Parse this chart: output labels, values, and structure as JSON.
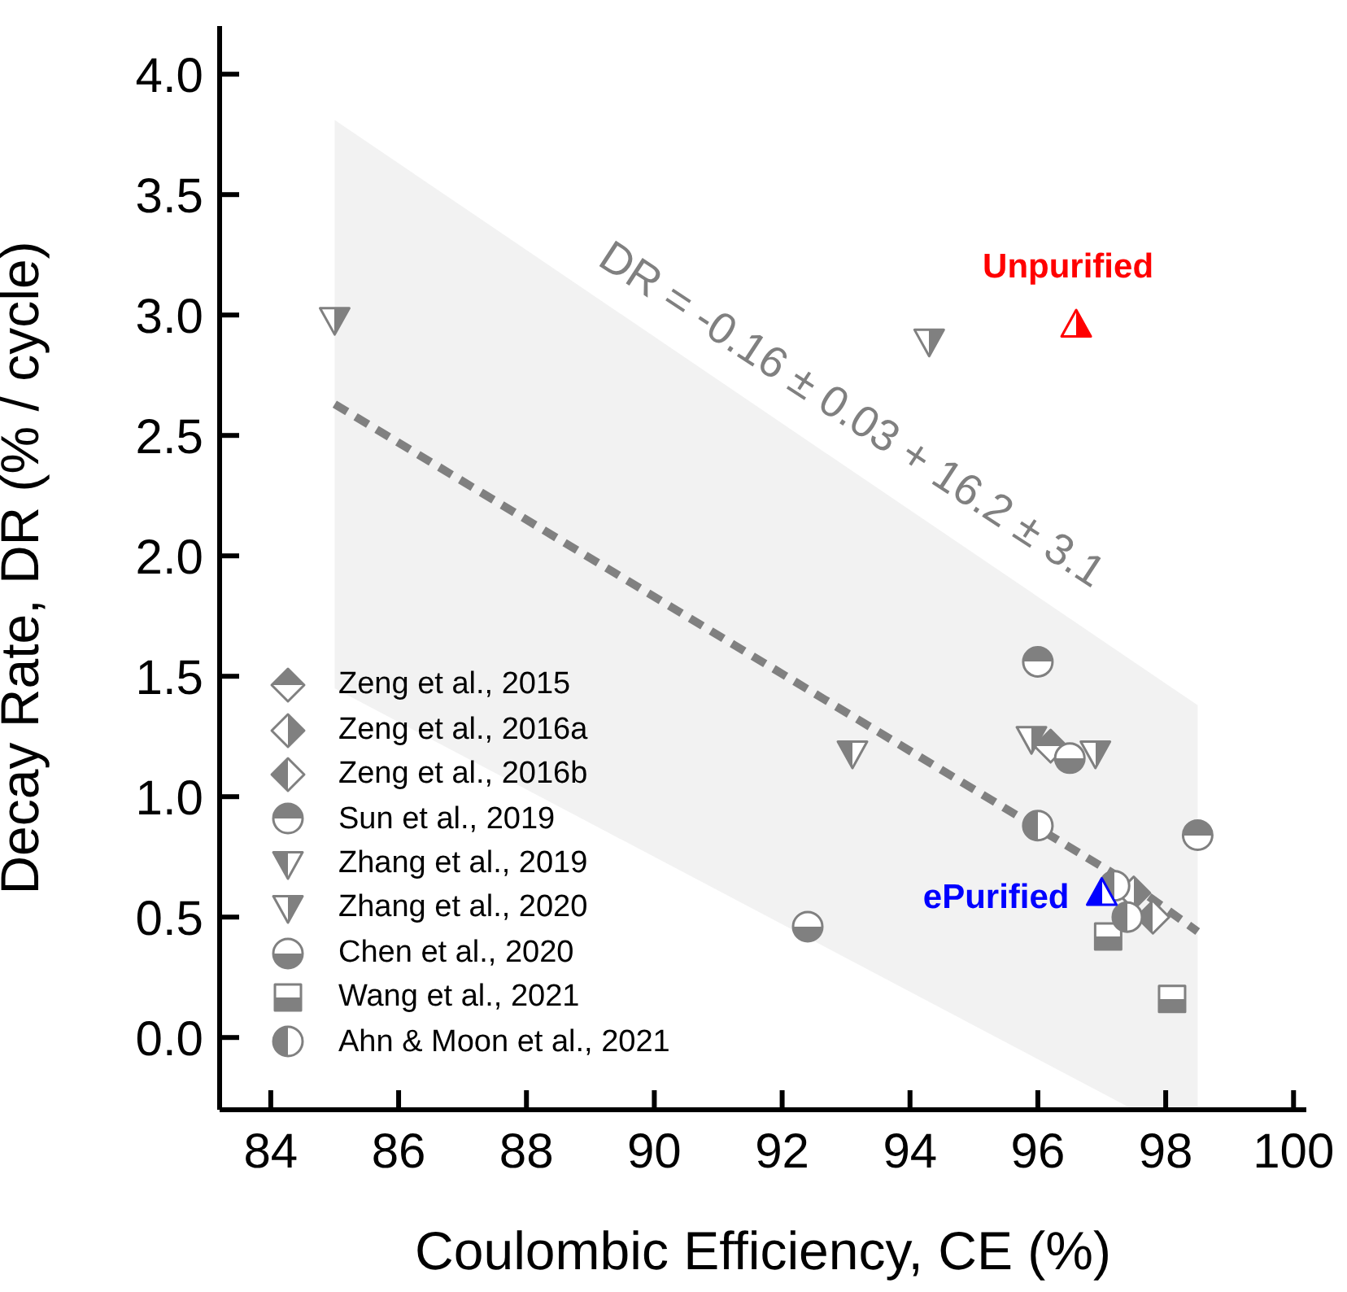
{
  "chart_data": {
    "type": "scatter",
    "xlabel": "Coulombic Efficiency, CE (%)",
    "ylabel": "Decay Rate, DR (% / cycle)",
    "xlim": [
      83.2,
      100.2
    ],
    "xticks": [
      84,
      86,
      88,
      90,
      92,
      94,
      96,
      98,
      100
    ],
    "ylim": [
      -0.3,
      4.2
    ],
    "yticks": [
      {
        "value": 0,
        "label": "0.0"
      },
      {
        "value": 0.5,
        "label": "0.5"
      },
      {
        "value": 1,
        "label": "1.0"
      },
      {
        "value": 1.5,
        "label": "1.5"
      },
      {
        "value": 2,
        "label": "2.0"
      },
      {
        "value": 2.5,
        "label": "2.5"
      },
      {
        "value": 3,
        "label": "3.0"
      },
      {
        "value": 3.5,
        "label": "3.5"
      },
      {
        "value": 4,
        "label": "4.0"
      }
    ],
    "legend": "bottom left",
    "grid": false,
    "annotations": [
      "DR = -0.16 ± 0.03 + 16.2 ± 3.1",
      {
        "text": "Unpurified",
        "x": 96.6,
        "y": 2.96
      },
      {
        "text": "ePurified",
        "x": 97.0,
        "y": 0.6
      }
    ],
    "series": [
      {
        "type": "line",
        "color": "#808080",
        "line_style": "dashed",
        "x": [
          85,
          97.5,
          98.5
        ],
        "values": [
          2.63,
          0.63,
          0.44
        ],
        "lower": [
          1.45,
          -0.3,
          -0.3
        ],
        "upper": [
          3.81,
          1.56,
          1.38
        ]
      },
      {
        "name": "Zeng et al., 2015",
        "color": "#808080",
        "marker": "diamond",
        "x": [
          96.2
        ],
        "values": [
          1.21
        ]
      },
      {
        "name": "Zeng et al., 2016a",
        "color": "#808080",
        "marker": "diamond",
        "x": [
          97.5
        ],
        "values": [
          0.6
        ]
      },
      {
        "name": "Zeng et al., 2016b",
        "color": "#808080",
        "marker": "diamond",
        "x": [
          97.8
        ],
        "values": [
          0.5
        ]
      },
      {
        "name": "Sun et al., 2019",
        "color": "#808080",
        "marker": "circle",
        "x": [
          96.0,
          98.5
        ],
        "values": [
          1.56,
          0.84
        ]
      },
      {
        "name": "Zhang et al., 2019",
        "color": "#808080",
        "marker": "triangle",
        "x": [
          93.1
        ],
        "values": [
          1.18
        ]
      },
      {
        "name": "Zhang et al., 2020",
        "color": "#808080",
        "marker": "triangle",
        "x": [
          85.0,
          94.3,
          95.9,
          96.9
        ],
        "values": [
          2.98,
          2.89,
          1.24,
          1.18
        ]
      },
      {
        "name": "Chen et al., 2020",
        "color": "#808080",
        "marker": "circle",
        "x": [
          92.4,
          96.5
        ],
        "values": [
          0.46,
          1.16
        ]
      },
      {
        "name": "Wang et al., 2021",
        "color": "#808080",
        "marker": "square",
        "x": [
          97.1,
          98.1
        ],
        "values": [
          0.42,
          0.16
        ]
      },
      {
        "name": "Ahn & Moon et al., 2021",
        "color": "#808080",
        "marker": "circle",
        "x": [
          96.0,
          97.2,
          97.4
        ],
        "values": [
          0.88,
          0.63,
          0.5
        ]
      },
      {
        "color": "#ff0000",
        "marker": "triangle",
        "x": [
          96.6
        ],
        "values": [
          2.96
        ]
      },
      {
        "color": "#0000ff",
        "marker": "triangle",
        "x": [
          97.0
        ],
        "values": [
          0.6
        ]
      }
    ]
  }
}
